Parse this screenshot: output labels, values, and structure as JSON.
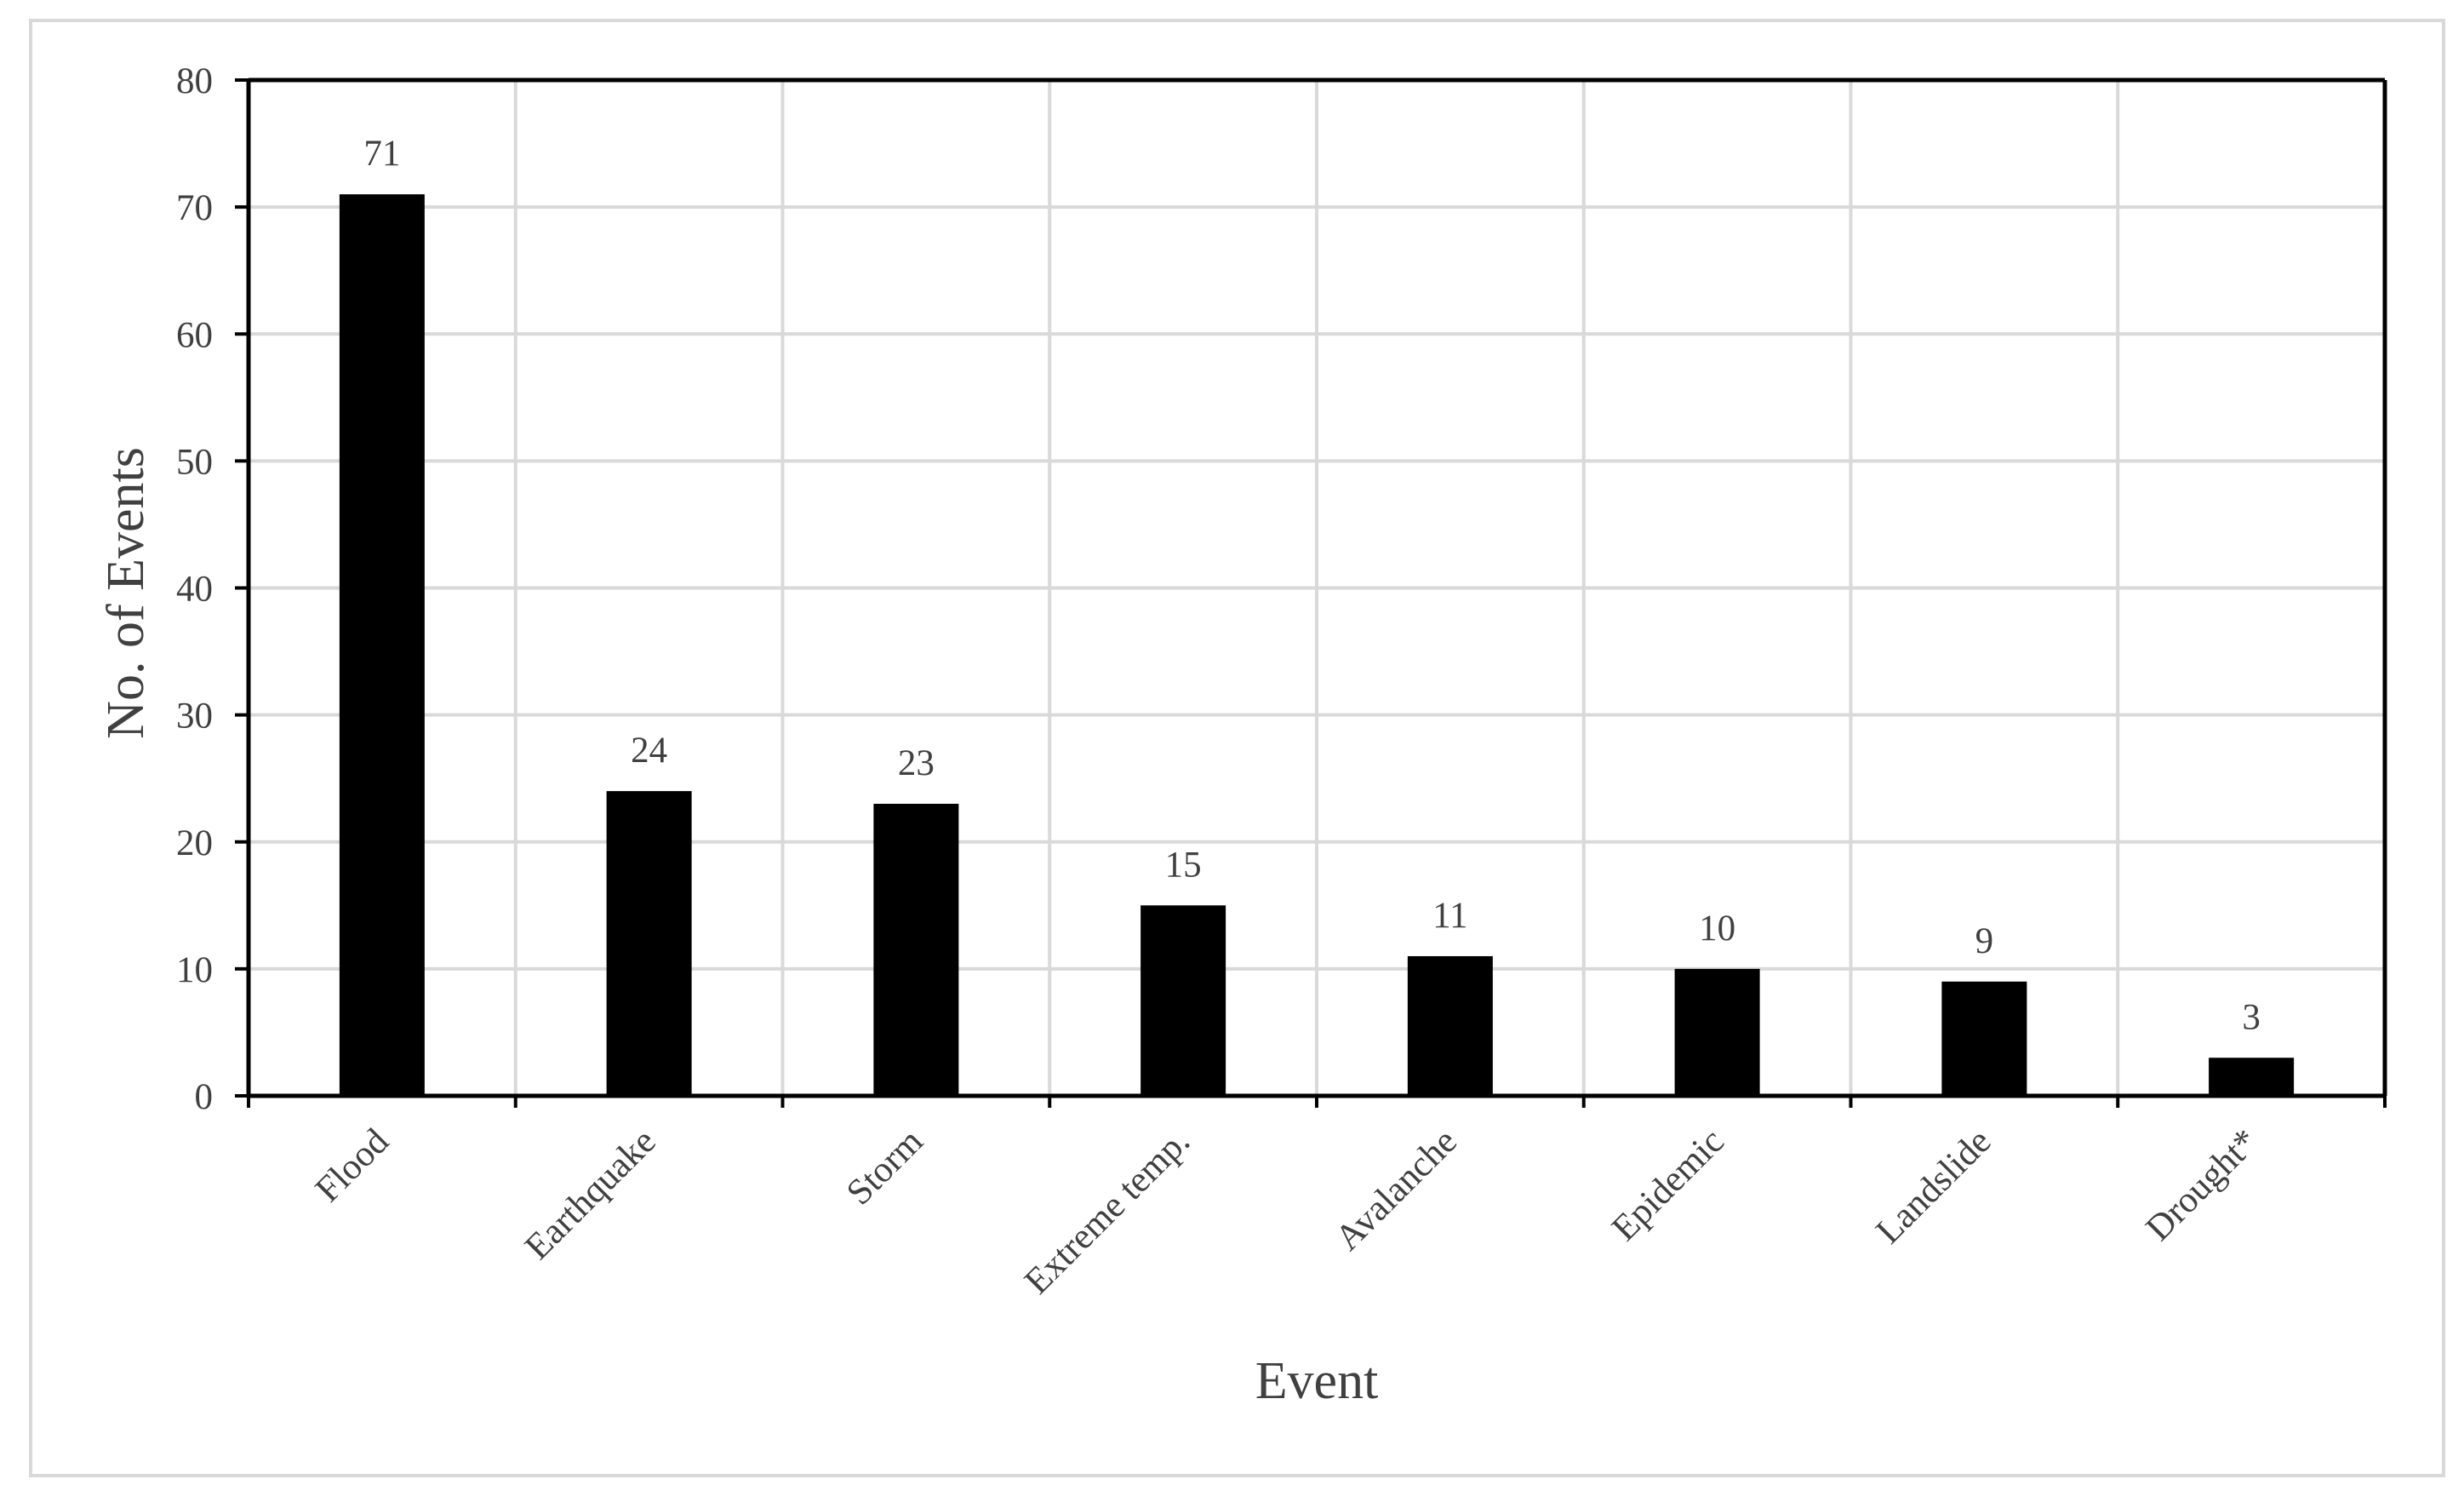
{
  "chart_data": {
    "type": "bar",
    "title": "",
    "xlabel": "Event",
    "ylabel": "No. of Events",
    "categories": [
      "Flood",
      "Earthquake",
      "Storm",
      "Extreme temp.",
      "Avalanche",
      "Epidemic",
      "Landslide",
      "Drought*"
    ],
    "values": [
      71,
      24,
      23,
      15,
      11,
      10,
      9,
      3
    ],
    "data_labels": [
      "71",
      "24",
      "23",
      "15",
      "11",
      "10",
      "9",
      "3"
    ],
    "ylim": [
      0,
      80
    ],
    "yticks": [
      "0",
      "10",
      "20",
      "30",
      "40",
      "50",
      "60",
      "70",
      "80"
    ],
    "grid": true,
    "legend": "none",
    "colors": {
      "bar": "#000000",
      "grid": "#d9d9d9",
      "frame": "#000000",
      "outer_border": "#d9d9d9",
      "text": "#404040"
    }
  }
}
